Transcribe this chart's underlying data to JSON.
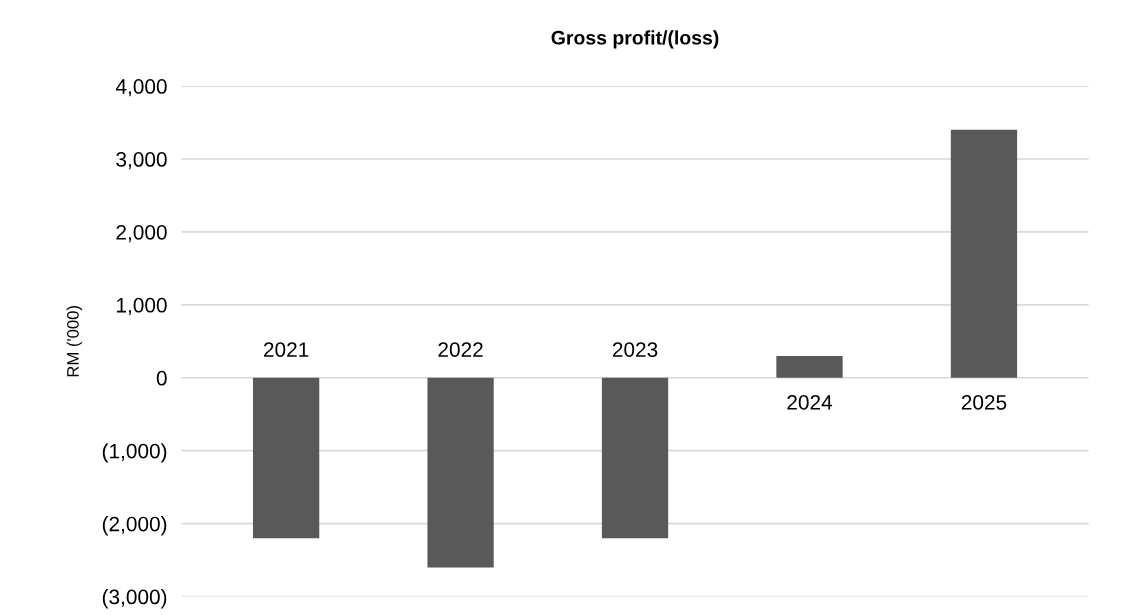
{
  "chart_data": {
    "type": "bar",
    "title": "Gross profit/(loss)",
    "ylabel": "RM ('000)",
    "categories": [
      "2021",
      "2022",
      "2023",
      "2024",
      "2025"
    ],
    "values": [
      -2200,
      -2600,
      -2200,
      300,
      3400
    ],
    "color": "#595959",
    "ylim": [
      -3000,
      4000
    ],
    "yticks": [
      {
        "value": -3000,
        "label": "(3,000)"
      },
      {
        "value": -2000,
        "label": "(2,000)"
      },
      {
        "value": -1000,
        "label": "(1,000)"
      },
      {
        "value": 0,
        "label": "0"
      },
      {
        "value": 1000,
        "label": "1,000"
      },
      {
        "value": 2000,
        "label": "2,000"
      },
      {
        "value": 3000,
        "label": "3,000"
      },
      {
        "value": 4000,
        "label": "4,000"
      }
    ],
    "grid": "y"
  }
}
